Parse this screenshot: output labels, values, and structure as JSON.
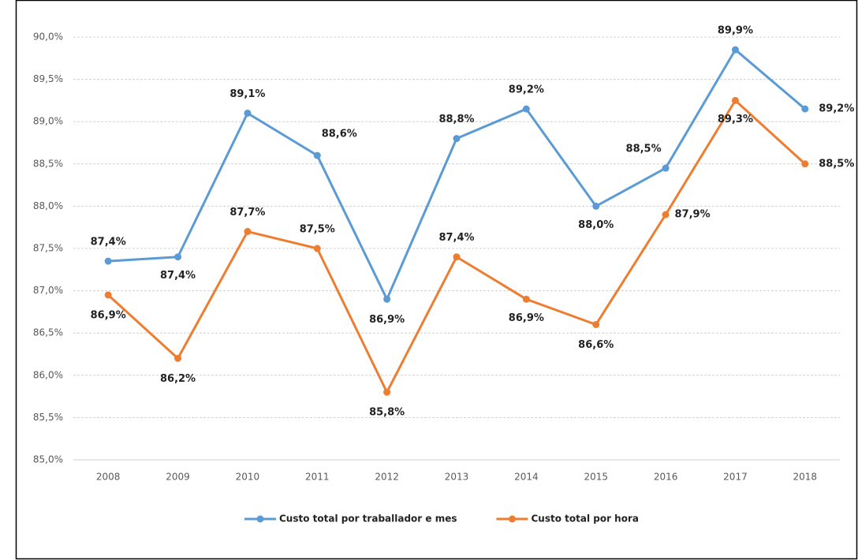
{
  "chart_data": {
    "type": "line",
    "categories": [
      "2008",
      "2009",
      "2010",
      "2011",
      "2012",
      "2013",
      "2014",
      "2015",
      "2016",
      "2017",
      "2018"
    ],
    "series": [
      {
        "name": "Custo total por traballador e mes",
        "color": "#5b9bd5",
        "values": [
          87.35,
          87.4,
          89.1,
          88.6,
          86.9,
          88.8,
          89.15,
          88.0,
          88.45,
          89.85,
          89.15
        ],
        "value_labels": [
          "87,4%",
          "87,4%",
          "89,1%",
          "88,6%",
          "86,9%",
          "88,8%",
          "89,2%",
          "88,0%",
          "88,5%",
          "89,9%",
          "89,2%"
        ]
      },
      {
        "name": "Custo total por hora",
        "color": "#ed7d31",
        "values": [
          86.95,
          86.2,
          87.7,
          87.5,
          85.8,
          87.4,
          86.9,
          86.6,
          87.9,
          89.25,
          88.5
        ],
        "value_labels": [
          "86,9%",
          "86,2%",
          "87,7%",
          "87,5%",
          "85,8%",
          "87,4%",
          "86,9%",
          "86,6%",
          "87,9%",
          "89,3%",
          "88,5%"
        ]
      }
    ],
    "ylim": [
      85,
      90
    ],
    "yticks": [
      {
        "value": 85,
        "label": "85,0%"
      },
      {
        "value": 85.5,
        "label": "85,5%"
      },
      {
        "value": 86,
        "label": "86,0%"
      },
      {
        "value": 86.5,
        "label": "86,5%"
      },
      {
        "value": 87,
        "label": "87,0%"
      },
      {
        "value": 87.5,
        "label": "87,5%"
      },
      {
        "value": 88,
        "label": "88,0%"
      },
      {
        "value": 88.5,
        "label": "88,5%"
      },
      {
        "value": 89,
        "label": "89,0%"
      },
      {
        "value": 89.5,
        "label": "89,5%"
      },
      {
        "value": 90,
        "label": "90,0%"
      }
    ],
    "grid": true,
    "legend": "bottom"
  }
}
